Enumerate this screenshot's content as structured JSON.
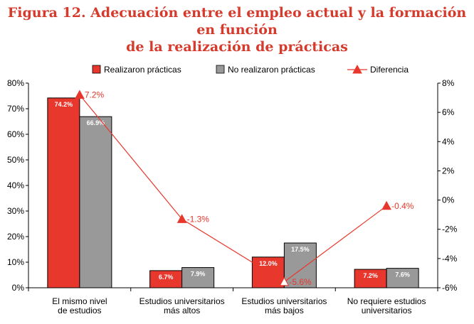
{
  "title": {
    "line1": "Figura 12. Adecuación entre el empleo actual y la formación en función",
    "line2": "de la realización de prácticas"
  },
  "colors": {
    "title": "#d63a2c",
    "series_a": "#e8372c",
    "series_b": "#999999",
    "line": "#e8372c"
  },
  "chart_data": {
    "type": "bar",
    "categories": [
      [
        "El mismo nivel",
        "de estudios"
      ],
      [
        "Estudios universitarios",
        "más altos"
      ],
      [
        "Estudios universitarios",
        "más bajos"
      ],
      [
        "No requiere estudios",
        "universitarios"
      ]
    ],
    "series": [
      {
        "name": "Realizaron prácticas",
        "values": [
          74.2,
          6.7,
          12.0,
          7.2
        ],
        "labels": [
          "74.2%",
          "6.7%",
          "12.0%",
          "7.2%"
        ]
      },
      {
        "name": "No realizaron prácticas",
        "values": [
          66.9,
          7.9,
          17.5,
          7.6
        ],
        "labels": [
          "66.9%",
          "7.9%",
          "17.5%",
          "7.6%"
        ]
      }
    ],
    "line_series": {
      "name": "Diferencia",
      "values": [
        7.2,
        -1.3,
        -5.6,
        -0.4
      ],
      "labels": [
        "7.2%",
        "-1.3%",
        "-5.6%",
        "-0.4%"
      ],
      "axis": "right"
    },
    "ylim_left": [
      0,
      80
    ],
    "yticks_left": [
      "0%",
      "10%",
      "20%",
      "30%",
      "40%",
      "50%",
      "60%",
      "70%",
      "80%"
    ],
    "ylim_right": [
      -6,
      8
    ],
    "yticks_right": [
      "-6%",
      "-4%",
      "-2%",
      "0%",
      "2%",
      "4%",
      "6%",
      "8%"
    ],
    "legend_position": "top"
  }
}
